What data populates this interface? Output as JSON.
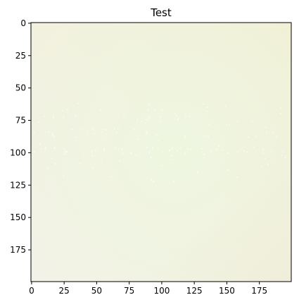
{
  "chart_data": {
    "type": "heatmap",
    "title": "Test",
    "xlabel": "",
    "ylabel": "",
    "image_size": [
      200,
      200
    ],
    "xlim": [
      -0.5,
      199.5
    ],
    "ylim": [
      199.5,
      -0.5
    ],
    "x_ticks": [
      0,
      25,
      50,
      75,
      100,
      125,
      150,
      175
    ],
    "y_ticks": [
      0,
      25,
      50,
      75,
      100,
      125,
      150,
      175
    ],
    "x_tick_labels": [
      "0",
      "25",
      "50",
      "75",
      "100",
      "125",
      "150",
      "175"
    ],
    "y_tick_labels": [
      "0",
      "25",
      "50",
      "75",
      "100",
      "125",
      "150",
      "175"
    ],
    "grid": false,
    "legend": "none",
    "colors": {
      "center": "#eef6e0",
      "top_right": "#f1f0d6",
      "bottom_left": "#f3f2e8",
      "bottom_right": "#efedd9",
      "left": "#f4f4ea",
      "speckle": "#ffffff"
    }
  }
}
